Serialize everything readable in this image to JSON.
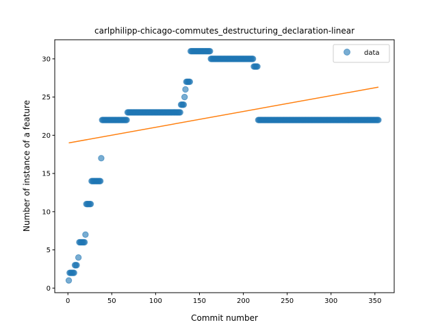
{
  "chart_data": {
    "type": "scatter",
    "title": "carlphilipp-chicago-commutes_destructuring_declaration-linear",
    "xlabel": "Commit number",
    "ylabel": "Number of instance of a feature",
    "xlim": [
      -15,
      372
    ],
    "ylim": [
      -0.6,
      32.5
    ],
    "xticks": [
      0,
      50,
      100,
      150,
      200,
      250,
      300,
      350
    ],
    "yticks": [
      0,
      5,
      10,
      15,
      20,
      25,
      30
    ],
    "legend": {
      "position": "top-right",
      "entries": [
        "data"
      ]
    },
    "colors": {
      "data": "#1f77b4",
      "fit": "#ff7f0e"
    },
    "series": [
      {
        "name": "data",
        "kind": "scatter",
        "segments": [
          [
            1,
            1,
            1
          ],
          [
            2,
            7,
            2
          ],
          [
            8,
            10,
            3
          ],
          [
            12,
            12,
            4
          ],
          [
            13,
            19,
            6
          ],
          [
            20,
            20,
            7
          ],
          [
            21,
            26,
            11
          ],
          [
            27,
            37,
            14
          ],
          [
            38,
            38,
            17
          ],
          [
            39,
            67,
            22
          ],
          [
            68,
            128,
            23
          ],
          [
            129,
            132,
            24
          ],
          [
            133,
            133,
            25
          ],
          [
            134,
            134,
            26
          ],
          [
            135,
            139,
            27
          ],
          [
            140,
            162,
            31
          ],
          [
            163,
            211,
            30
          ],
          [
            212,
            216,
            29
          ],
          [
            217,
            354,
            22
          ]
        ]
      },
      {
        "name": "fit",
        "kind": "line",
        "x": [
          1,
          354
        ],
        "y": [
          19.0,
          26.3
        ]
      }
    ]
  }
}
